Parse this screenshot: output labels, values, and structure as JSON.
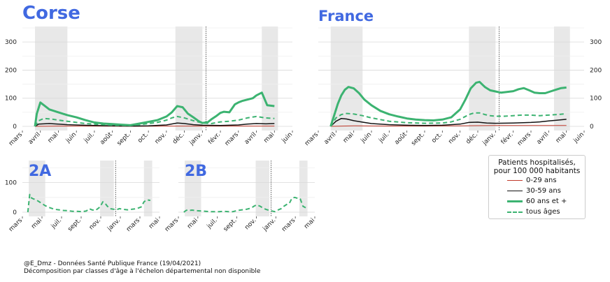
{
  "chart_data": [
    {
      "id": "corse",
      "title": "Corse",
      "type": "line",
      "xticks": [
        "mars",
        "avril",
        "mai",
        "juin",
        "juil.",
        "août",
        "sept.",
        "oct.",
        "nov.",
        "déc.",
        "janv.",
        "févr.",
        "mars",
        "avril",
        "mai",
        "juin"
      ],
      "xlim": [
        0,
        15
      ],
      "ylim": [
        0,
        350
      ],
      "yticks": [
        0,
        100,
        200,
        300
      ],
      "ytick_side": "left",
      "shaded_periods": [
        [
          0.7,
          2.5
        ],
        [
          8.5,
          10.0
        ],
        [
          13.3,
          14.2
        ]
      ],
      "vline": 10.2,
      "series": [
        {
          "name": "0-29 ans",
          "x": [
            0.7,
            2,
            4,
            6,
            8,
            10,
            12,
            14
          ],
          "y": [
            0,
            1,
            1,
            0,
            1,
            1,
            1,
            1
          ]
        },
        {
          "name": "30-59 ans",
          "x": [
            0.7,
            0.9,
            1.5,
            2.5,
            4,
            5,
            6,
            7,
            8,
            8.6,
            9,
            9.5,
            10,
            11,
            12,
            12.5,
            13,
            13.5,
            14
          ],
          "y": [
            0,
            8,
            10,
            6,
            3,
            2,
            1,
            2,
            5,
            12,
            10,
            6,
            4,
            3,
            5,
            8,
            10,
            9,
            10
          ]
        },
        {
          "name": "60 ans et +",
          "x": [
            0.7,
            0.8,
            1.0,
            1.2,
            1.5,
            2.0,
            2.5,
            3.0,
            3.5,
            4.0,
            4.5,
            5.0,
            5.5,
            6.0,
            6.5,
            7.0,
            7.5,
            8.0,
            8.3,
            8.6,
            8.9,
            9.2,
            9.5,
            9.8,
            10.0,
            10.3,
            10.5,
            10.8,
            11.0,
            11.2,
            11.5,
            11.8,
            12.0,
            12.2,
            12.5,
            12.8,
            13.0,
            13.3,
            13.6,
            14.0
          ],
          "y": [
            0,
            45,
            85,
            75,
            60,
            50,
            40,
            32,
            22,
            14,
            10,
            8,
            6,
            4,
            10,
            16,
            22,
            35,
            50,
            72,
            68,
            45,
            32,
            18,
            12,
            15,
            25,
            38,
            48,
            52,
            50,
            78,
            85,
            90,
            95,
            100,
            110,
            120,
            75,
            72
          ]
        },
        {
          "name": "tous âges",
          "x": [
            0.7,
            0.9,
            1.2,
            1.6,
            2.0,
            2.5,
            3.0,
            3.5,
            4.0,
            5.0,
            6.0,
            6.5,
            7.0,
            7.5,
            8.0,
            8.3,
            8.6,
            9.0,
            9.5,
            10.0,
            10.5,
            11.0,
            11.5,
            12.0,
            12.5,
            13.0,
            13.5,
            14.0
          ],
          "y": [
            0,
            20,
            28,
            26,
            22,
            18,
            14,
            10,
            8,
            4,
            3,
            6,
            10,
            14,
            22,
            30,
            35,
            30,
            20,
            12,
            10,
            16,
            18,
            22,
            30,
            35,
            30,
            28
          ]
        }
      ]
    },
    {
      "id": "france",
      "title": "France",
      "type": "line",
      "xticks": [
        "mars",
        "avril",
        "mai",
        "juin",
        "juil.",
        "août",
        "sept.",
        "oct.",
        "nov.",
        "déc.",
        "janv.",
        "févr.",
        "mars",
        "avril",
        "mai",
        "juin"
      ],
      "xlim": [
        0,
        15
      ],
      "ylim": [
        0,
        350
      ],
      "yticks": [
        0,
        100,
        200,
        300
      ],
      "ytick_side": "right",
      "shaded_periods": [
        [
          0.7,
          2.5
        ],
        [
          8.5,
          10.0
        ],
        [
          13.3,
          14.2
        ]
      ],
      "vline": 10.2,
      "series": [
        {
          "name": "0-29 ans",
          "x": [
            0.7,
            2,
            4,
            6,
            8,
            10,
            12,
            14
          ],
          "y": [
            0,
            2,
            1,
            1,
            2,
            3,
            3,
            3
          ]
        },
        {
          "name": "30-59 ans",
          "x": [
            0.7,
            1.0,
            1.3,
            1.6,
            2.0,
            2.5,
            3.0,
            4.0,
            5.0,
            6.0,
            7.0,
            8.0,
            8.5,
            9.0,
            9.5,
            10.0,
            11.0,
            12.0,
            12.5,
            13.0,
            13.5,
            14.0
          ],
          "y": [
            0,
            18,
            28,
            26,
            20,
            15,
            10,
            6,
            4,
            3,
            4,
            8,
            14,
            15,
            12,
            11,
            12,
            14,
            16,
            19,
            22,
            25
          ]
        },
        {
          "name": "60 ans et +",
          "x": [
            0.7,
            0.9,
            1.1,
            1.3,
            1.5,
            1.7,
            2.0,
            2.3,
            2.6,
            3.0,
            3.5,
            4.0,
            4.5,
            5.0,
            5.5,
            6.0,
            6.5,
            7.0,
            7.5,
            8.0,
            8.3,
            8.6,
            8.9,
            9.1,
            9.4,
            9.7,
            10.0,
            10.3,
            10.6,
            11.0,
            11.3,
            11.6,
            11.9,
            12.2,
            12.5,
            12.8,
            13.1,
            13.4,
            13.7,
            14.0
          ],
          "y": [
            0,
            40,
            80,
            110,
            130,
            140,
            135,
            118,
            95,
            75,
            55,
            43,
            35,
            28,
            24,
            22,
            21,
            24,
            32,
            60,
            95,
            135,
            155,
            158,
            140,
            128,
            124,
            120,
            122,
            125,
            132,
            136,
            128,
            120,
            118,
            118,
            124,
            130,
            136,
            138
          ]
        },
        {
          "name": "tous âges",
          "x": [
            0.7,
            1.0,
            1.3,
            1.6,
            2.0,
            2.5,
            3.0,
            3.5,
            4.0,
            5.0,
            6.0,
            7.0,
            7.5,
            8.0,
            8.5,
            8.8,
            9.1,
            9.4,
            9.7,
            10.0,
            10.5,
            11.0,
            11.5,
            12.0,
            12.5,
            13.0,
            13.5,
            14.0
          ],
          "y": [
            0,
            30,
            42,
            46,
            44,
            38,
            30,
            24,
            18,
            13,
            11,
            12,
            16,
            25,
            42,
            48,
            48,
            42,
            38,
            36,
            36,
            38,
            40,
            40,
            38,
            40,
            42,
            45
          ]
        }
      ]
    },
    {
      "id": "2a",
      "title": "2A",
      "type": "line",
      "xticks": [
        "mars",
        "mai",
        "juil.",
        "sept.",
        "nov.",
        "janv.",
        "mars",
        "mai"
      ],
      "xlim": [
        0,
        15
      ],
      "ylim": [
        0,
        170
      ],
      "yticks": [
        0,
        100
      ],
      "ytick_side": "left",
      "shaded_periods": [
        [
          0.7,
          2.5
        ],
        [
          8.5,
          10.0
        ],
        [
          13.3,
          14.2
        ]
      ],
      "vline": 10.2,
      "series": [
        {
          "name": "tous âges",
          "x": [
            0.6,
            0.7,
            0.8,
            1.0,
            1.2,
            1.5,
            2.0,
            2.5,
            3.0,
            3.5,
            4.0,
            4.5,
            5.0,
            5.5,
            6.0,
            6.5,
            7.0,
            7.3,
            7.6,
            8.0,
            8.5,
            8.8,
            9.0,
            9.3,
            9.6,
            10.0,
            10.3,
            10.6,
            11.0,
            11.5,
            12.0,
            12.5,
            13.0,
            13.3,
            13.6,
            14.0
          ],
          "y": [
            0,
            30,
            60,
            48,
            45,
            42,
            32,
            22,
            15,
            10,
            8,
            6,
            5,
            3,
            3,
            2,
            4,
            12,
            8,
            6,
            18,
            35,
            32,
            20,
            12,
            10,
            8,
            12,
            10,
            8,
            10,
            12,
            18,
            35,
            42,
            40
          ]
        }
      ]
    },
    {
      "id": "2b",
      "title": "2B",
      "type": "line",
      "xticks": [
        "mars",
        "mai",
        "juil.",
        "sept.",
        "nov.",
        "janv.",
        "mars",
        "mai"
      ],
      "xlim": [
        0,
        15
      ],
      "ylim": [
        0,
        170
      ],
      "yticks": [
        0,
        100
      ],
      "ytick_side": "none",
      "shaded_periods": [
        [
          0.7,
          2.5
        ],
        [
          8.5,
          10.0
        ],
        [
          13.3,
          14.2
        ]
      ],
      "vline": 10.2,
      "series": [
        {
          "name": "tous âges",
          "x": [
            0.6,
            0.8,
            1.0,
            1.2,
            1.5,
            2.0,
            2.5,
            3.0,
            3.5,
            4.0,
            4.5,
            5.0,
            5.5,
            6.0,
            6.5,
            7.0,
            7.5,
            8.0,
            8.3,
            8.6,
            9.0,
            9.3,
            9.6,
            10.0,
            10.3,
            10.6,
            11.0,
            11.3,
            11.6,
            12.0,
            12.2,
            12.5,
            12.8,
            13.1,
            13.4,
            13.7,
            14.0
          ],
          "y": [
            0,
            5,
            8,
            6,
            7,
            5,
            4,
            3,
            2,
            2,
            2,
            3,
            2,
            2,
            6,
            8,
            10,
            14,
            20,
            25,
            20,
            14,
            10,
            6,
            4,
            2,
            8,
            12,
            20,
            28,
            30,
            48,
            50,
            47,
            45,
            20,
            15
          ]
        }
      ]
    }
  ],
  "legend": {
    "title": "Patients hospitalisés, pour 100 000 habitants",
    "entries": [
      {
        "name": "0-29 ans",
        "color": "#c0392b",
        "style": "solid-thin"
      },
      {
        "name": "30-59 ans",
        "color": "#111111",
        "style": "solid"
      },
      {
        "name": "60 ans et +",
        "color": "#3cb371",
        "style": "solid-thick"
      },
      {
        "name": "tous âges",
        "color": "#3cb371",
        "style": "dashed"
      }
    ]
  },
  "colors": {
    "title": "#4169e1",
    "green": "#3cb371",
    "black": "#111111",
    "red": "#c0392b",
    "shade": "#e8e8e8",
    "grid": "#dddddd"
  },
  "footer": {
    "line1": "@E_Dmz - Données Santé Publique France (19/04/2021)",
    "line2": "Décomposition par classes d'âge à l'échelon départemental non disponible"
  }
}
